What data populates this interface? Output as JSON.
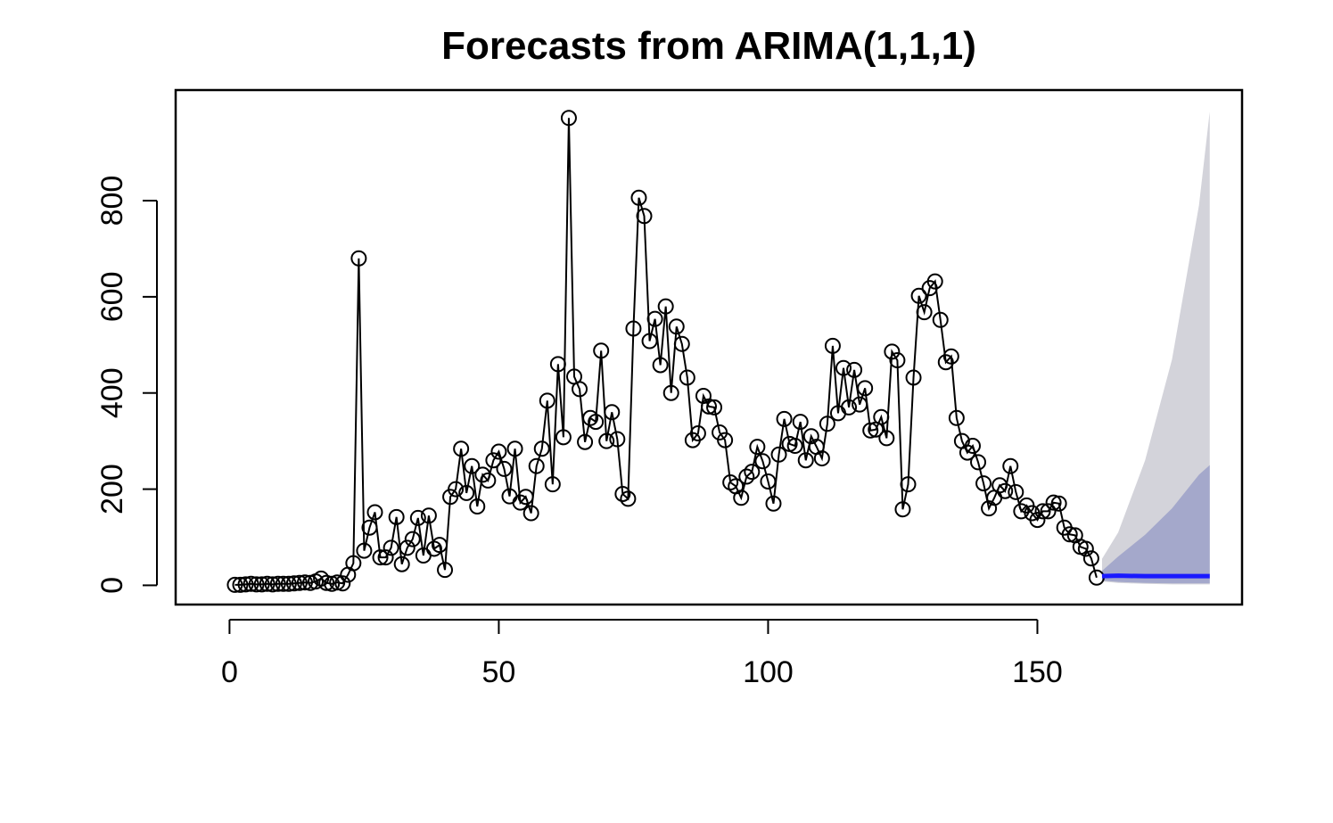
{
  "chart_data": {
    "type": "line",
    "title": "Forecasts from ARIMA(1,1,1)",
    "xlabel": "",
    "ylabel": "",
    "xlim": [
      -10,
      188
    ],
    "ylim": [
      -40,
      1030
    ],
    "x_ticks": [
      0,
      50,
      100,
      150
    ],
    "y_ticks": [
      0,
      200,
      400,
      600,
      800
    ],
    "grid": false,
    "legend": "none",
    "colors": {
      "observed": "#000000",
      "forecast": "#1a1aff",
      "pi80": "#a4a8cb",
      "pi95": "#d3d3da"
    },
    "observed": {
      "x": [
        1,
        2,
        3,
        4,
        5,
        6,
        7,
        8,
        9,
        10,
        11,
        12,
        13,
        14,
        15,
        16,
        17,
        18,
        19,
        20,
        21,
        22,
        23,
        24,
        25,
        26,
        27,
        28,
        29,
        30,
        31,
        32,
        33,
        34,
        35,
        36,
        37,
        38,
        39,
        40,
        41,
        42,
        43,
        44,
        45,
        46,
        47,
        48,
        49,
        50,
        51,
        52,
        53,
        54,
        55,
        56,
        57,
        58,
        59,
        60,
        61,
        62,
        63,
        64,
        65,
        66,
        67,
        68,
        69,
        70,
        71,
        72,
        73,
        74,
        75,
        76,
        77,
        78,
        79,
        80,
        81,
        82,
        83,
        84,
        85,
        86,
        87,
        88,
        89,
        90,
        91,
        92,
        93,
        94,
        95,
        96,
        97,
        98,
        99,
        100,
        101,
        102,
        103,
        104,
        105,
        106,
        107,
        108,
        109,
        110,
        111,
        112,
        113,
        114,
        115,
        116,
        117,
        118,
        119,
        120,
        121,
        122,
        123,
        124,
        125,
        126,
        127,
        128,
        129,
        130,
        131,
        132,
        133,
        134,
        135,
        136,
        137,
        138,
        139,
        140,
        141,
        142,
        143,
        144,
        145,
        146,
        147,
        148,
        149,
        150,
        151,
        152,
        153,
        154,
        155,
        156,
        157,
        158,
        159,
        160,
        161
      ],
      "y": [
        1,
        1,
        2,
        3,
        2,
        2,
        3,
        2,
        3,
        3,
        3,
        4,
        5,
        6,
        5,
        8,
        14,
        5,
        3,
        6,
        4,
        22,
        46,
        680,
        72,
        120,
        152,
        58,
        58,
        78,
        142,
        44,
        78,
        96,
        140,
        62,
        145,
        76,
        84,
        32,
        184,
        200,
        284,
        192,
        248,
        164,
        230,
        218,
        260,
        278,
        242,
        185,
        284,
        172,
        184,
        150,
        248,
        284,
        384,
        210,
        460,
        308,
        972,
        434,
        408,
        298,
        348,
        340,
        488,
        300,
        360,
        304,
        190,
        180,
        534,
        806,
        768,
        508,
        554,
        458,
        580,
        400,
        538,
        502,
        432,
        302,
        316,
        394,
        372,
        370,
        318,
        302,
        214,
        206,
        182,
        226,
        236,
        288,
        258,
        216,
        170,
        272,
        346,
        294,
        290,
        340,
        260,
        310,
        288,
        264,
        336,
        498,
        358,
        452,
        370,
        448,
        376,
        410,
        322,
        324,
        350,
        306,
        486,
        468,
        158,
        210,
        432,
        602,
        568,
        618,
        632,
        552,
        464,
        476,
        348,
        300,
        276,
        290,
        256,
        212,
        160,
        182,
        208,
        196,
        248,
        194,
        154,
        166,
        150,
        136,
        154,
        154,
        172,
        170,
        120,
        106,
        104,
        80,
        76,
        56,
        16
      ]
    },
    "forecast": {
      "x": [
        162,
        165,
        170,
        175,
        180,
        182
      ],
      "mean": [
        19,
        20,
        19,
        19,
        19,
        19
      ],
      "lo80": [
        10,
        7,
        5,
        4,
        4,
        4
      ],
      "hi80": [
        30,
        60,
        105,
        160,
        230,
        250
      ],
      "lo95": [
        8,
        5,
        3,
        2,
        2,
        2
      ],
      "hi95": [
        55,
        110,
        260,
        470,
        790,
        985
      ]
    }
  }
}
